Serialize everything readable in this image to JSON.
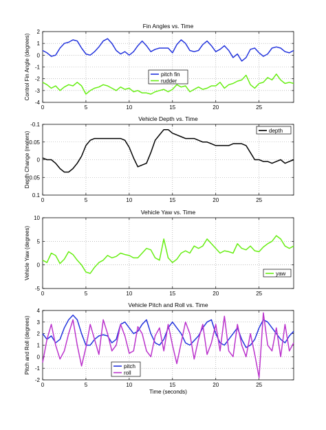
{
  "chart_data": [
    {
      "type": "line",
      "title": "Fin Angles vs. Time",
      "xlabel": "",
      "ylabel": "Control Fin Angle (degrees)",
      "xlim": [
        0,
        29
      ],
      "ylim": [
        -4,
        2
      ],
      "xticks": [
        "0",
        "5",
        "10",
        "15",
        "20",
        "25"
      ],
      "xtick_values": [
        0,
        5,
        10,
        15,
        20,
        25
      ],
      "yticks": [
        "-4",
        "-3",
        "-2",
        "-1",
        "0",
        "1",
        "2"
      ],
      "ytick_values": [
        -4,
        -3,
        -2,
        -1,
        0,
        1,
        2
      ],
      "grid": true,
      "legend_position": "center",
      "series": [
        {
          "name": "pitch fin",
          "color": "#2233dd",
          "x": [
            0,
            0.5,
            1,
            1.5,
            2,
            2.5,
            3,
            3.5,
            4,
            4.5,
            5,
            5.5,
            6,
            6.5,
            7,
            7.5,
            8,
            8.5,
            9,
            9.5,
            10,
            10.5,
            11,
            11.5,
            12,
            12.5,
            13,
            13.5,
            14,
            14.5,
            15,
            15.5,
            16,
            16.5,
            17,
            17.5,
            18,
            18.5,
            19,
            19.5,
            20,
            20.5,
            21,
            21.5,
            22,
            22.5,
            23,
            23.5,
            24,
            24.5,
            25,
            25.5,
            26,
            26.5,
            27,
            27.5,
            28,
            28.5,
            29
          ],
          "y": [
            0.4,
            0.2,
            -0.1,
            0,
            0.6,
            1.0,
            1.1,
            1.3,
            1.2,
            0.6,
            0.1,
            0,
            0.3,
            0.7,
            1.2,
            1.4,
            1.0,
            0.4,
            0.1,
            0.3,
            0,
            0.3,
            0.8,
            1.2,
            0.8,
            0.3,
            0.5,
            0.6,
            0.6,
            0.6,
            0.2,
            0.9,
            1.3,
            1.0,
            0.4,
            0.3,
            0.4,
            0.9,
            1.2,
            0.8,
            0.3,
            0.5,
            0.8,
            0.4,
            -0.2,
            0.1,
            -0.5,
            -0.2,
            0.5,
            0.6,
            0.2,
            -0.1,
            0.1,
            0.6,
            0.7,
            0.6,
            0.3,
            0.2,
            0.4
          ]
        },
        {
          "name": "rudder",
          "color": "#66ee11",
          "x": [
            0,
            0.5,
            1,
            1.5,
            2,
            2.5,
            3,
            3.5,
            4,
            4.5,
            5,
            5.5,
            6,
            6.5,
            7,
            7.5,
            8,
            8.5,
            9,
            9.5,
            10,
            10.5,
            11,
            11.5,
            12,
            12.5,
            13,
            13.5,
            14,
            14.5,
            15,
            15.5,
            16,
            16.5,
            17,
            17.5,
            18,
            18.5,
            19,
            19.5,
            20,
            20.5,
            21,
            21.5,
            22,
            22.5,
            23,
            23.5,
            24,
            24.5,
            25,
            25.5,
            26,
            26.5,
            27,
            27.5,
            28,
            28.5,
            29
          ],
          "y": [
            -2.3,
            -2.5,
            -2.8,
            -2.6,
            -3.0,
            -2.7,
            -2.5,
            -2.6,
            -2.3,
            -2.6,
            -3.3,
            -3.0,
            -2.8,
            -2.7,
            -2.5,
            -2.6,
            -2.8,
            -3.0,
            -2.7,
            -2.9,
            -2.8,
            -3.1,
            -3.0,
            -3.2,
            -3.2,
            -3.3,
            -3.1,
            -3.0,
            -2.9,
            -3.1,
            -2.9,
            -2.5,
            -2.7,
            -2.6,
            -3.1,
            -2.9,
            -2.7,
            -2.9,
            -2.8,
            -2.6,
            -2.6,
            -2.3,
            -2.8,
            -2.5,
            -2.4,
            -2.2,
            -2.1,
            -1.7,
            -2.5,
            -2.8,
            -2.4,
            -2.3,
            -1.9,
            -2.1,
            -1.6,
            -2.1,
            -2.4,
            -2.3,
            -2.4
          ]
        }
      ]
    },
    {
      "type": "line",
      "title": "Vehicle Depth vs. Time",
      "xlabel": "",
      "ylabel": "Depth Change (meters)",
      "xlim": [
        0,
        29
      ],
      "ylim": [
        0.1,
        -0.1
      ],
      "y_reversed": true,
      "xticks": [
        "0",
        "5",
        "10",
        "15",
        "20",
        "25"
      ],
      "xtick_values": [
        0,
        5,
        10,
        15,
        20,
        25
      ],
      "yticks": [
        "-0.1",
        "-0.05",
        "0",
        "0.05",
        "0.1"
      ],
      "ytick_values": [
        -0.1,
        -0.05,
        0,
        0.05,
        0.1
      ],
      "grid": true,
      "legend_position": "top-right",
      "series": [
        {
          "name": "depth",
          "color": "#000000",
          "x": [
            0,
            0.5,
            1,
            1.5,
            2,
            2.5,
            3,
            3.5,
            4,
            4.5,
            5,
            5.5,
            6,
            6.5,
            7,
            7.5,
            8,
            8.5,
            9,
            9.5,
            10,
            10.5,
            11,
            11.5,
            12,
            12.5,
            13,
            13.5,
            14,
            14.5,
            15,
            15.5,
            16,
            16.5,
            17,
            17.5,
            18,
            18.5,
            19,
            19.5,
            20,
            20.5,
            21,
            21.5,
            22,
            22.5,
            23,
            23.5,
            24,
            24.5,
            25,
            25.5,
            26,
            26.5,
            27,
            27.5,
            28,
            28.5,
            29
          ],
          "y": [
            -0.005,
            0,
            0,
            0.01,
            0.025,
            0.035,
            0.035,
            0.025,
            0.01,
            -0.01,
            -0.04,
            -0.055,
            -0.06,
            -0.06,
            -0.06,
            -0.06,
            -0.06,
            -0.06,
            -0.06,
            -0.055,
            -0.035,
            -0.005,
            0.02,
            0.015,
            0.01,
            -0.02,
            -0.055,
            -0.07,
            -0.085,
            -0.085,
            -0.075,
            -0.07,
            -0.065,
            -0.06,
            -0.06,
            -0.06,
            -0.055,
            -0.05,
            -0.05,
            -0.045,
            -0.04,
            -0.04,
            -0.04,
            -0.04,
            -0.045,
            -0.045,
            -0.045,
            -0.04,
            -0.02,
            0,
            0,
            0.005,
            0.005,
            0.01,
            0.005,
            0,
            0.01,
            0.005,
            0
          ]
        }
      ]
    },
    {
      "type": "line",
      "title": "Vehicle Yaw vs. Time",
      "xlabel": "",
      "ylabel": "Vehicle Yaw (degrees)",
      "xlim": [
        0,
        29
      ],
      "ylim": [
        -5,
        10
      ],
      "xticks": [
        "0",
        "5",
        "10",
        "15",
        "20",
        "25"
      ],
      "xtick_values": [
        0,
        5,
        10,
        15,
        20,
        25
      ],
      "yticks": [
        "-5",
        "0",
        "5",
        "10"
      ],
      "ytick_values": [
        -5,
        0,
        5,
        10
      ],
      "grid": true,
      "legend_position": "bottom-right",
      "series": [
        {
          "name": "yaw",
          "color": "#66ee11",
          "x": [
            0,
            0.5,
            1,
            1.5,
            2,
            2.5,
            3,
            3.5,
            4,
            4.5,
            5,
            5.5,
            6,
            6.5,
            7,
            7.5,
            8,
            8.5,
            9,
            9.5,
            10,
            10.5,
            11,
            11.5,
            12,
            12.5,
            13,
            13.5,
            14,
            14.5,
            15,
            15.5,
            16,
            16.5,
            17,
            17.5,
            18,
            18.5,
            19,
            19.5,
            20,
            20.5,
            21,
            21.5,
            22,
            22.5,
            23,
            23.5,
            24,
            24.5,
            25,
            25.5,
            26,
            26.5,
            27,
            27.5,
            28,
            28.5,
            29
          ],
          "y": [
            1.0,
            0.5,
            2.5,
            2.0,
            0.3,
            1.2,
            2.8,
            2.2,
            1.0,
            0,
            -1.5,
            -1.8,
            -0.5,
            0.5,
            1.0,
            2.0,
            1.5,
            1.8,
            2.5,
            2.2,
            2.0,
            1.5,
            1.5,
            2.5,
            3.5,
            3.2,
            1.5,
            1.0,
            5.5,
            1.5,
            0.5,
            1.2,
            2.5,
            3.0,
            2.5,
            4.0,
            3.5,
            4.0,
            5.5,
            4.5,
            3.5,
            2.5,
            3.0,
            2.8,
            2.5,
            4.5,
            3.5,
            3.2,
            4.0,
            3.0,
            2.8,
            3.8,
            4.5,
            5.0,
            6.2,
            5.5,
            4.0,
            3.5,
            4.0
          ]
        }
      ]
    },
    {
      "type": "line",
      "title": "Vehicle Pitch and Roll vs. Time",
      "xlabel": "Time (seconds)",
      "ylabel": "Pitch and Roll (degrees)",
      "xlim": [
        0,
        29
      ],
      "ylim": [
        -2,
        4
      ],
      "xticks": [
        "0",
        "5",
        "10",
        "15",
        "20",
        "25"
      ],
      "xtick_values": [
        0,
        5,
        10,
        15,
        20,
        25
      ],
      "yticks": [
        "-2",
        "-1",
        "0",
        "1",
        "2",
        "3",
        "4"
      ],
      "ytick_values": [
        -2,
        -1,
        0,
        1,
        2,
        3,
        4
      ],
      "grid": true,
      "legend_position": "bottom-left",
      "series": [
        {
          "name": "pitch",
          "color": "#2233dd",
          "x": [
            0,
            0.5,
            1,
            1.5,
            2,
            2.5,
            3,
            3.5,
            4,
            4.5,
            5,
            5.5,
            6,
            6.5,
            7,
            7.5,
            8,
            8.5,
            9,
            9.5,
            10,
            10.5,
            11,
            11.5,
            12,
            12.5,
            13,
            13.5,
            14,
            14.5,
            15,
            15.5,
            16,
            16.5,
            17,
            17.5,
            18,
            18.5,
            19,
            19.5,
            20,
            20.5,
            21,
            21.5,
            22,
            22.5,
            23,
            23.5,
            24,
            24.5,
            25,
            25.5,
            26,
            26.5,
            27,
            27.5,
            28,
            28.5,
            29
          ],
          "y": [
            2.0,
            1.5,
            1.8,
            1.2,
            1.5,
            2.5,
            3.2,
            3.6,
            3.2,
            2.0,
            1.0,
            1.0,
            1.5,
            1.8,
            1.9,
            1.8,
            1.2,
            1.5,
            2.8,
            3.0,
            2.5,
            2.0,
            2.2,
            2.8,
            3.2,
            2.0,
            1.2,
            1.0,
            1.5,
            2.5,
            3.0,
            2.5,
            2.0,
            1.2,
            1.0,
            1.4,
            1.8,
            2.5,
            3.0,
            3.2,
            2.0,
            1.2,
            1.0,
            1.5,
            2.0,
            2.5,
            1.5,
            0.8,
            1.0,
            1.5,
            2.5,
            3.2,
            3.0,
            2.5,
            2.0,
            1.5,
            1.2,
            1.8,
            2.2
          ]
        },
        {
          "name": "roll",
          "color": "#bb33cc",
          "x": [
            0,
            0.5,
            1,
            1.5,
            2,
            2.5,
            3,
            3.5,
            4,
            4.5,
            5,
            5.5,
            6,
            6.5,
            7,
            7.5,
            8,
            8.5,
            9,
            9.5,
            10,
            10.5,
            11,
            11.5,
            12,
            12.5,
            13,
            13.5,
            14,
            14.5,
            15,
            15.5,
            16,
            16.5,
            17,
            17.5,
            18,
            18.5,
            19,
            19.5,
            20,
            20.5,
            21,
            21.5,
            22,
            22.5,
            23,
            23.5,
            24,
            24.5,
            25,
            25.5,
            26,
            26.5,
            27,
            27.5,
            28,
            28.5,
            29
          ],
          "y": [
            -0.5,
            1.5,
            2.8,
            1.0,
            -0.2,
            0.5,
            2.0,
            3.2,
            1.0,
            -0.8,
            0.8,
            2.8,
            1.5,
            0.2,
            3.2,
            2.0,
            0.5,
            1.0,
            2.8,
            1.8,
            0.3,
            0.5,
            2.6,
            2.0,
            0.5,
            0,
            1.8,
            2.5,
            0.5,
            2.8,
            1.0,
            -0.6,
            1.2,
            3.0,
            2.0,
            -0.2,
            1.5,
            2.8,
            0.2,
            1.2,
            2.8,
            0.5,
            3.5,
            0.5,
            0,
            2.8,
            1.0,
            0,
            2.0,
            0.2,
            -1.8,
            3.8,
            1.0,
            0.5,
            2.5,
            0.0,
            2.8,
            0.5,
            1.2
          ]
        }
      ]
    }
  ]
}
